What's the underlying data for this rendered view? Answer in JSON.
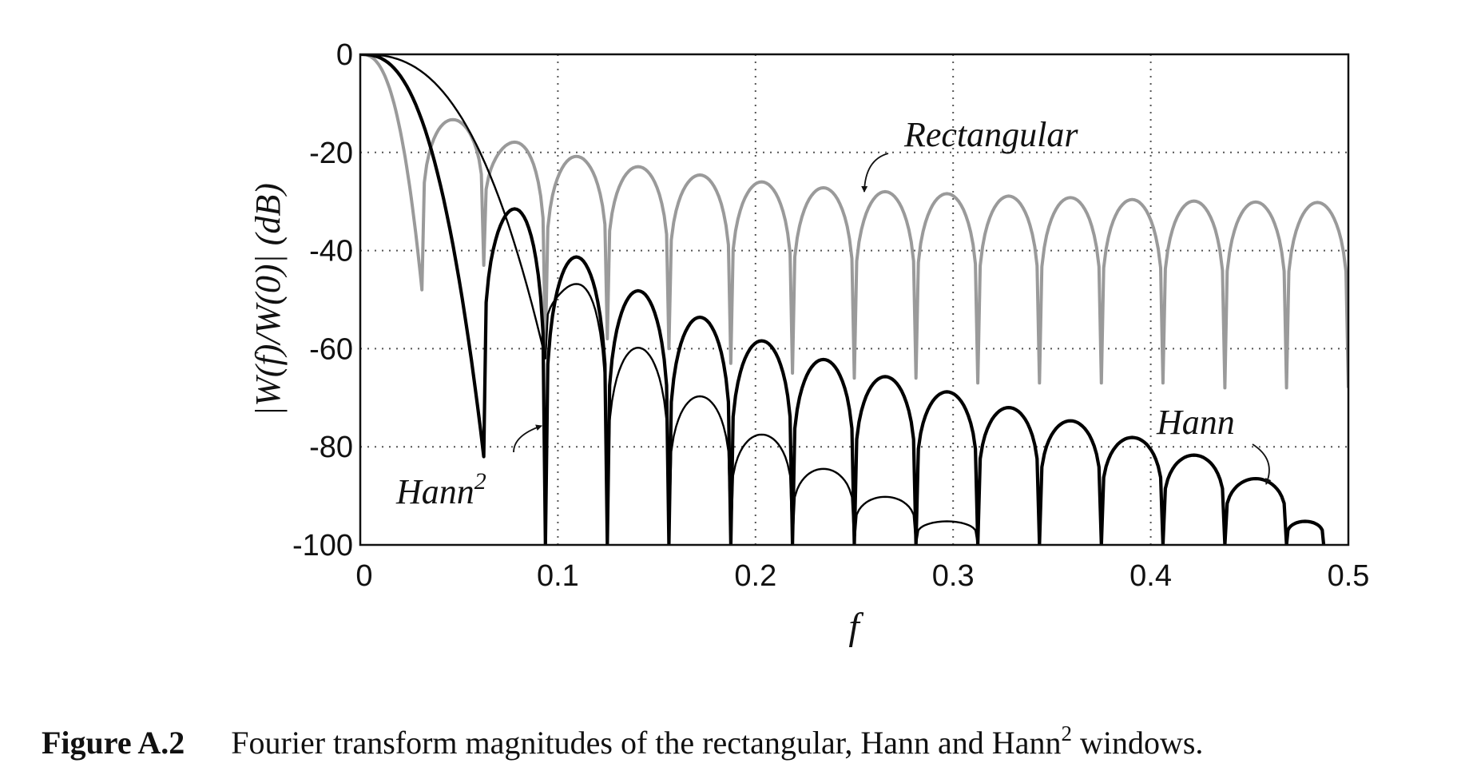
{
  "chart_data": {
    "type": "line",
    "title": "",
    "xlabel": "f",
    "ylabel": "|W(f)/W(0)| (dB)",
    "xlim": [
      0,
      0.5
    ],
    "ylim": [
      -100,
      0
    ],
    "x_ticks": [
      "0",
      "0.1",
      "0.2",
      "0.3",
      "0.4",
      "0.5"
    ],
    "y_ticks": [
      "0",
      "-20",
      "-40",
      "-60",
      "-80",
      "-100"
    ],
    "grid": true,
    "legend": "none",
    "annotations": [
      {
        "text": "Rectangular",
        "target_series": "Rectangular"
      },
      {
        "text": "Hann",
        "target_series": "Hann"
      },
      {
        "text": "Hann",
        "superscript": "2",
        "target_series": "Hann2"
      }
    ],
    "series": [
      {
        "name": "Rectangular",
        "color": "#9a9a9a",
        "nulls": [
          0.0312,
          0.0625,
          0.0937,
          0.125,
          0.1562,
          0.1875,
          0.2187,
          0.25,
          0.2812,
          0.3125,
          0.3437,
          0.375,
          0.4062,
          0.4375,
          0.4687,
          0.5
        ],
        "null_depths": [
          -48,
          -43,
          -60,
          -58,
          -60,
          -63,
          -65,
          -66,
          -66,
          -67,
          -67,
          -67,
          -67,
          -68,
          -68,
          -68
        ],
        "lobe_peaks_x": [
          0.0469,
          0.0781,
          0.1094,
          0.1406,
          0.1719,
          0.2031,
          0.2344,
          0.2656,
          0.2969,
          0.3281,
          0.3594,
          0.3906,
          0.4219,
          0.4531,
          0.4844
        ],
        "lobe_peaks_db": [
          -13.3,
          -17.9,
          -20.8,
          -22.9,
          -24.6,
          -26.0,
          -27.2,
          -28.0,
          -28.4,
          -28.9,
          -29.2,
          -29.6,
          -29.9,
          -30.1,
          -30.2
        ]
      },
      {
        "name": "Hann",
        "color": "#000000",
        "nulls": [
          0.0625,
          0.0937,
          0.125,
          0.1562,
          0.1875,
          0.2187,
          0.25,
          0.2812,
          0.3125,
          0.3437,
          0.375,
          0.4062,
          0.4375,
          0.4687,
          0.4875
        ],
        "null_depths": [
          -82,
          -100,
          -100,
          -100,
          -100,
          -100,
          -100,
          -100,
          -100,
          -100,
          -100,
          -100,
          -100,
          -100,
          -100
        ],
        "lobe_peaks_x": [
          0.0781,
          0.1094,
          0.1406,
          0.1719,
          0.2031,
          0.2344,
          0.2656,
          0.2969,
          0.3281,
          0.3594,
          0.3906,
          0.4219,
          0.4531,
          0.4813
        ],
        "lobe_peaks_db": [
          -31.5,
          -41.3,
          -48.2,
          -53.6,
          -58.4,
          -62.2,
          -65.7,
          -68.8,
          -72.0,
          -74.7,
          -78.1,
          -81.7,
          -86.5,
          -95.2
        ]
      },
      {
        "name": "Hann2",
        "color": "#000000",
        "nulls": [
          0.0937,
          0.125,
          0.1562,
          0.1875,
          0.2187,
          0.25,
          0.2812,
          0.3125
        ],
        "null_depths": [
          -62,
          -100,
          -100,
          -100,
          -100,
          -100,
          -100,
          -100
        ],
        "lobe_peaks_x": [
          0.1094,
          0.1406,
          0.1719,
          0.2031,
          0.2344,
          0.2656,
          0.2969
        ],
        "lobe_peaks_db": [
          -46.8,
          -59.8,
          -69.7,
          -77.5,
          -84.5,
          -90.2,
          -95.2
        ]
      }
    ]
  },
  "caption": {
    "label": "Figure A.2",
    "text_before": "Fourier transform magnitudes of the rectangular, Hann and Hann",
    "superscript": "2",
    "text_after": " windows."
  }
}
